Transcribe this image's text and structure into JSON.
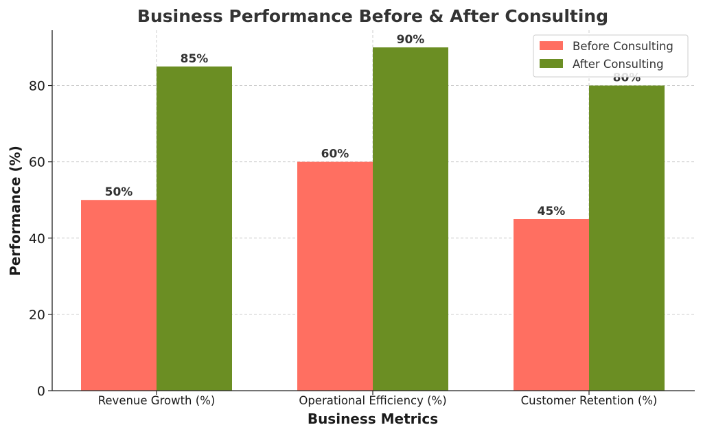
{
  "chart_data": {
    "type": "bar",
    "title": "Business Performance Before & After Consulting",
    "xlabel": "Business Metrics",
    "ylabel": "Performance (%)",
    "categories": [
      "Revenue Growth (%)",
      "Operational Efficiency (%)",
      "Customer Retention (%)"
    ],
    "series": [
      {
        "name": "Before Consulting",
        "values": [
          50,
          60,
          45
        ],
        "labels": [
          "50%",
          "60%",
          "45%"
        ],
        "color": "#ff6f61"
      },
      {
        "name": "After Consulting",
        "values": [
          85,
          90,
          80
        ],
        "labels": [
          "85%",
          "90%",
          "80%"
        ],
        "color": "#6b8e23"
      }
    ],
    "ylim": [
      0,
      94.5
    ],
    "yticks": [
      0,
      20,
      40,
      60,
      80
    ],
    "grid": true,
    "legend_position": "top-right"
  }
}
